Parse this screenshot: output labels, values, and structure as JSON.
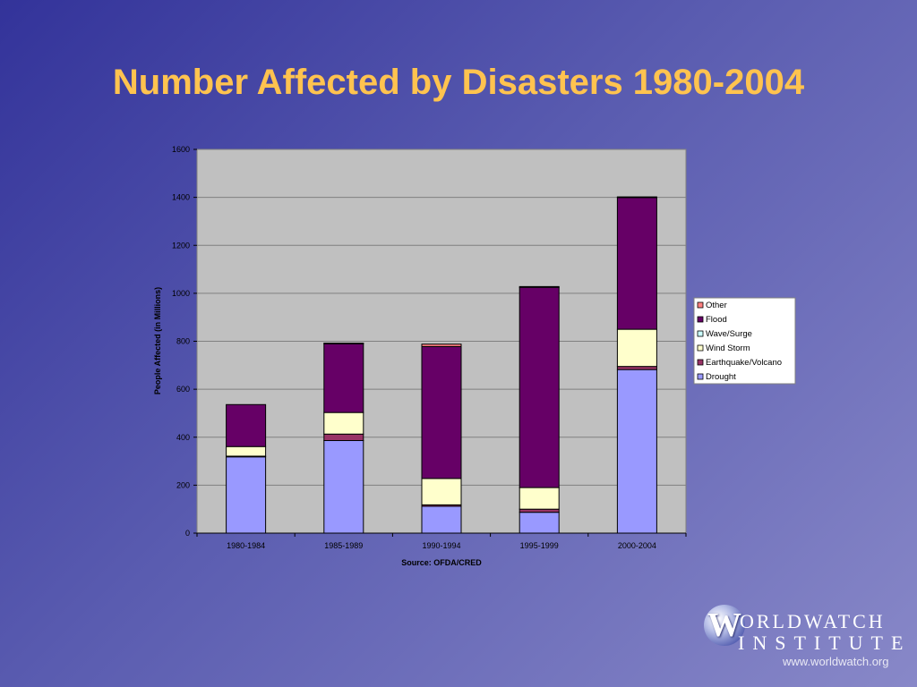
{
  "slide": {
    "title": "Number Affected by Disasters 1980-2004"
  },
  "logo": {
    "initial": "W",
    "line1": "ORLDWATCH",
    "line2": "INSTITUTE",
    "url": "www.worldwatch.org"
  },
  "chart_data": {
    "type": "bar",
    "stacked": true,
    "title": "",
    "xlabel": "Source: OFDA/CRED",
    "ylabel": "People Affected (in Millions)",
    "ylim": [
      0,
      1600
    ],
    "yticks": [
      0,
      200,
      400,
      600,
      800,
      1000,
      1200,
      1400,
      1600
    ],
    "grid": true,
    "legend_position": "right",
    "categories": [
      "1980-1984",
      "1985-1989",
      "1990-1994",
      "1995-1999",
      "2000-2004"
    ],
    "series": [
      {
        "name": "Drought",
        "color": "#9999ff",
        "values": [
          318,
          386,
          112,
          87,
          682
        ]
      },
      {
        "name": "Earthquake/Volcano",
        "color": "#993366",
        "values": [
          3,
          27,
          6,
          13,
          13
        ]
      },
      {
        "name": "Wind Storm",
        "color": "#ffffcc",
        "values": [
          40,
          90,
          110,
          90,
          155
        ]
      },
      {
        "name": "Wave/Surge",
        "color": "#ccffff",
        "values": [
          0,
          0,
          0,
          0,
          0
        ]
      },
      {
        "name": "Flood",
        "color": "#660066",
        "values": [
          175,
          288,
          550,
          835,
          550
        ]
      },
      {
        "name": "Other",
        "color": "#ff8080",
        "values": [
          0,
          1,
          10,
          3,
          2
        ]
      }
    ]
  }
}
